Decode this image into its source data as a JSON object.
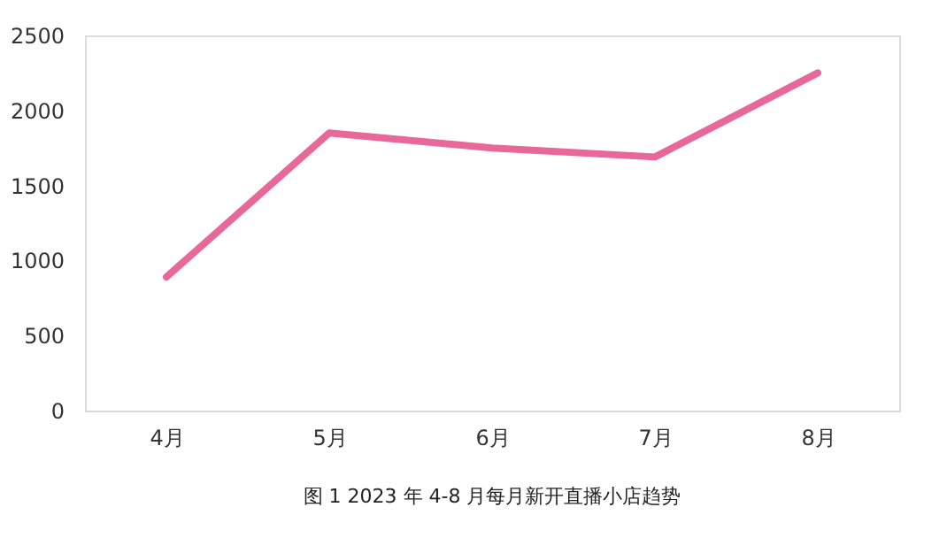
{
  "chart_data": {
    "type": "line",
    "categories": [
      "4月",
      "5月",
      "6月",
      "7月",
      "8月"
    ],
    "series": [
      {
        "color": "#e8689a",
        "values": [
          890,
          1850,
          1750,
          1690,
          2250
        ]
      }
    ],
    "ylim": [
      0,
      2500
    ],
    "yticks": [
      0,
      500,
      1000,
      1500,
      2000,
      2500
    ],
    "grid": false,
    "legend": false,
    "marker": "none",
    "line_style": "solid",
    "annotations": [
      "图 1 2023 年 4-8 月每月新开直播小店趋势"
    ]
  }
}
